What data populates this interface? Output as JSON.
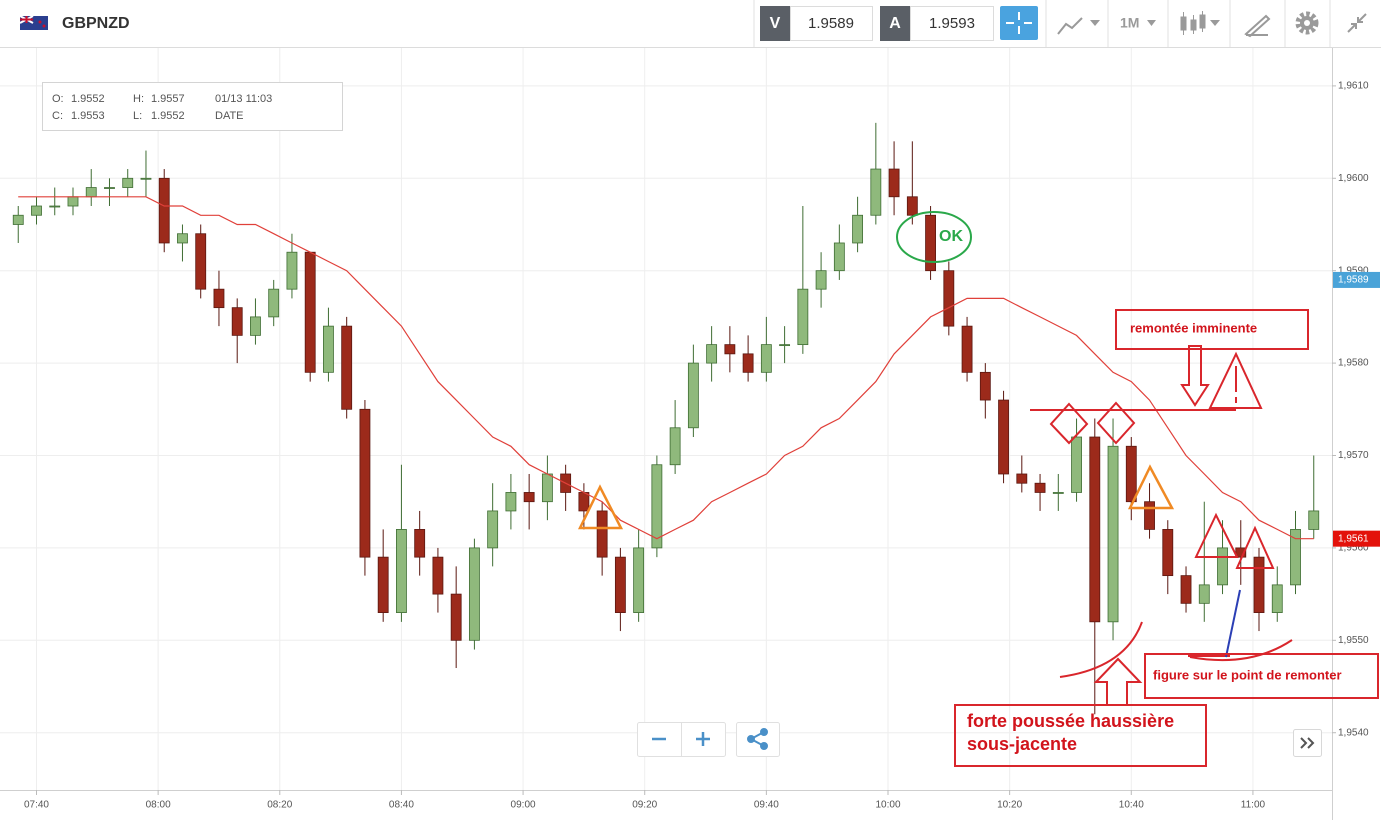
{
  "header": {
    "symbol": "GBPNZD",
    "sell_label": "V",
    "sell_price": "1.9589",
    "buy_label": "A",
    "buy_price": "1.9593",
    "timeframe": "1M"
  },
  "ohlc_box": {
    "o_label": "O:",
    "o_value": "1.9552",
    "h_label": "H:",
    "h_value": "1.9557",
    "date_value": "01/13 11:03",
    "c_label": "C:",
    "c_value": "1.9553",
    "l_label": "L:",
    "l_value": "1.9552",
    "date_label": "DATE"
  },
  "chart_data": {
    "type": "candlestick",
    "x": [
      "07:37",
      "07:40",
      "07:43",
      "07:46",
      "07:49",
      "07:52",
      "07:55",
      "07:58",
      "08:01",
      "08:04",
      "08:07",
      "08:10",
      "08:13",
      "08:16",
      "08:19",
      "08:22",
      "08:25",
      "08:28",
      "08:31",
      "08:34",
      "08:37",
      "08:40",
      "08:43",
      "08:46",
      "08:49",
      "08:52",
      "08:55",
      "08:58",
      "09:01",
      "09:04",
      "09:07",
      "09:10",
      "09:13",
      "09:16",
      "09:19",
      "09:22",
      "09:25",
      "09:28",
      "09:31",
      "09:34",
      "09:37",
      "09:40",
      "09:43",
      "09:46",
      "09:49",
      "09:52",
      "09:55",
      "09:58",
      "10:01",
      "10:04",
      "10:07",
      "10:10",
      "10:13",
      "10:16",
      "10:19",
      "10:22",
      "10:25",
      "10:28",
      "10:31",
      "10:34",
      "10:37",
      "10:40",
      "10:43",
      "10:46",
      "10:49",
      "10:52",
      "10:55",
      "10:58",
      "11:01",
      "11:04",
      "11:07",
      "11:10"
    ],
    "open": [
      1.9595,
      1.9596,
      1.9597,
      1.9597,
      1.9598,
      1.9599,
      1.9599,
      1.96,
      1.96,
      1.9593,
      1.9594,
      1.9588,
      1.9586,
      1.9583,
      1.9585,
      1.9588,
      1.9592,
      1.9579,
      1.9584,
      1.9575,
      1.9559,
      1.9553,
      1.9562,
      1.9559,
      1.9555,
      1.955,
      1.956,
      1.9564,
      1.9566,
      1.9565,
      1.9568,
      1.9566,
      1.9564,
      1.9559,
      1.9553,
      1.956,
      1.9569,
      1.9573,
      1.958,
      1.9582,
      1.9581,
      1.9579,
      1.9582,
      1.9582,
      1.9588,
      1.959,
      1.9593,
      1.9596,
      1.9601,
      1.9598,
      1.9596,
      1.959,
      1.9584,
      1.9579,
      1.9576,
      1.9568,
      1.9567,
      1.9566,
      1.9566,
      1.9572,
      1.9552,
      1.9571,
      1.9565,
      1.9562,
      1.9557,
      1.9554,
      1.9556,
      1.956,
      1.9559,
      1.9553,
      1.9556,
      1.9562
    ],
    "high": [
      1.9597,
      1.9598,
      1.9599,
      1.9599,
      1.9601,
      1.96,
      1.9601,
      1.9603,
      1.9601,
      1.9595,
      1.9595,
      1.959,
      1.9587,
      1.9587,
      1.9589,
      1.9594,
      1.9592,
      1.9586,
      1.9585,
      1.9576,
      1.9562,
      1.9569,
      1.9564,
      1.956,
      1.9558,
      1.9561,
      1.9567,
      1.9568,
      1.9568,
      1.957,
      1.9569,
      1.9567,
      1.9565,
      1.956,
      1.9562,
      1.957,
      1.9576,
      1.9582,
      1.9584,
      1.9584,
      1.9583,
      1.9585,
      1.9584,
      1.9597,
      1.9592,
      1.9595,
      1.9598,
      1.9606,
      1.9604,
      1.9604,
      1.9597,
      1.9591,
      1.9585,
      1.958,
      1.9577,
      1.957,
      1.9568,
      1.9568,
      1.9574,
      1.9574,
      1.9574,
      1.9572,
      1.9567,
      1.9563,
      1.9558,
      1.9565,
      1.9563,
      1.9563,
      1.956,
      1.9558,
      1.9564,
      1.957
    ],
    "low": [
      1.9593,
      1.9595,
      1.9596,
      1.9596,
      1.9597,
      1.9597,
      1.9598,
      1.9598,
      1.9592,
      1.9591,
      1.9587,
      1.9584,
      1.958,
      1.9582,
      1.9584,
      1.9587,
      1.9578,
      1.9578,
      1.9574,
      1.9557,
      1.9552,
      1.9552,
      1.9557,
      1.9553,
      1.9547,
      1.9549,
      1.9558,
      1.9562,
      1.9562,
      1.9563,
      1.9564,
      1.9562,
      1.9557,
      1.9551,
      1.9552,
      1.9559,
      1.9568,
      1.9572,
      1.9578,
      1.9579,
      1.9578,
      1.9578,
      1.958,
      1.9581,
      1.9586,
      1.9589,
      1.9592,
      1.9595,
      1.9596,
      1.9595,
      1.9589,
      1.9583,
      1.9578,
      1.9574,
      1.9567,
      1.9566,
      1.9564,
      1.9564,
      1.9565,
      1.9542,
      1.955,
      1.9563,
      1.9561,
      1.9555,
      1.9553,
      1.9552,
      1.9555,
      1.9556,
      1.9551,
      1.9552,
      1.9555,
      1.9561
    ],
    "close": [
      1.9596,
      1.9597,
      1.9597,
      1.9598,
      1.9599,
      1.9599,
      1.96,
      1.96,
      1.9593,
      1.9594,
      1.9588,
      1.9586,
      1.9583,
      1.9585,
      1.9588,
      1.9592,
      1.9579,
      1.9584,
      1.9575,
      1.9559,
      1.9553,
      1.9562,
      1.9559,
      1.9555,
      1.955,
      1.956,
      1.9564,
      1.9566,
      1.9565,
      1.9568,
      1.9566,
      1.9564,
      1.9559,
      1.9553,
      1.956,
      1.9569,
      1.9573,
      1.958,
      1.9582,
      1.9581,
      1.9579,
      1.9582,
      1.9582,
      1.9588,
      1.959,
      1.9593,
      1.9596,
      1.9601,
      1.9598,
      1.9596,
      1.959,
      1.9584,
      1.9579,
      1.9576,
      1.9568,
      1.9567,
      1.9566,
      1.9566,
      1.9572,
      1.9552,
      1.9571,
      1.9565,
      1.9562,
      1.9557,
      1.9554,
      1.9556,
      1.956,
      1.9559,
      1.9553,
      1.9556,
      1.9562,
      1.9564
    ],
    "up_color": "#8fb97c",
    "down_color": "#9c2a1b",
    "moving_average": {
      "color": "#e0403a",
      "values": [
        1.9598,
        1.9598,
        1.9598,
        1.9598,
        1.9598,
        1.9598,
        1.9598,
        1.9598,
        1.9597,
        1.9597,
        1.9596,
        1.9596,
        1.9595,
        1.9595,
        1.9594,
        1.9593,
        1.9592,
        1.9591,
        1.959,
        1.9588,
        1.9586,
        1.9584,
        1.9581,
        1.9578,
        1.9576,
        1.9574,
        1.9572,
        1.9571,
        1.9569,
        1.9568,
        1.9567,
        1.9566,
        1.9565,
        1.9563,
        1.9562,
        1.9561,
        1.9562,
        1.9563,
        1.9565,
        1.9566,
        1.9567,
        1.9568,
        1.957,
        1.9571,
        1.9573,
        1.9574,
        1.9576,
        1.9578,
        1.9581,
        1.9583,
        1.9585,
        1.9586,
        1.9587,
        1.9587,
        1.9587,
        1.9586,
        1.9585,
        1.9584,
        1.9583,
        1.9581,
        1.9579,
        1.9578,
        1.9576,
        1.9573,
        1.957,
        1.9568,
        1.9566,
        1.9565,
        1.9563,
        1.9562,
        1.9561,
        1.9561
      ]
    },
    "xlim": [
      "07:34",
      "11:13"
    ],
    "xticks": [
      "07:40",
      "08:00",
      "08:20",
      "08:40",
      "09:00",
      "09:20",
      "09:40",
      "10:00",
      "10:20",
      "10:40",
      "11:00"
    ],
    "ylim": [
      1.95338,
      1.96141
    ],
    "yticks": [
      {
        "value": 1.954,
        "label": "1,9540"
      },
      {
        "value": 1.955,
        "label": "1,9550"
      },
      {
        "value": 1.956,
        "label": "1,9560"
      },
      {
        "value": 1.957,
        "label": "1,9570"
      },
      {
        "value": 1.958,
        "label": "1,9580"
      },
      {
        "value": 1.959,
        "label": "1,9590"
      },
      {
        "value": 1.96,
        "label": "1,9600"
      },
      {
        "value": 1.961,
        "label": "1,9610"
      }
    ],
    "price_markers": [
      {
        "value": 1.9589,
        "label": "1,9589",
        "color": "#4aa3d8"
      },
      {
        "value": 1.9561,
        "label": "1,9561",
        "color": "#e3120b"
      }
    ],
    "grid": true,
    "annotations": [
      "OK",
      "remontée imminente",
      "forte poussée haussière",
      "sous-jacente",
      "figure sur le point de remonter"
    ]
  }
}
